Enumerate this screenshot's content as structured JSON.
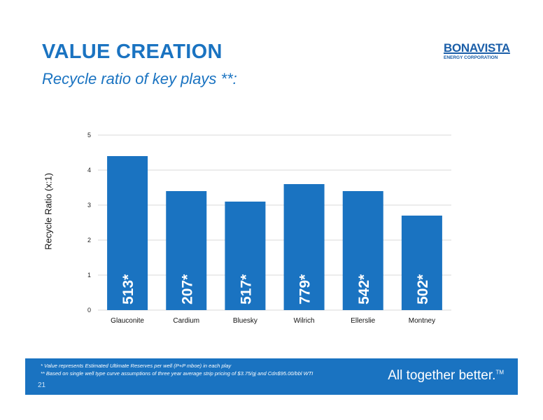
{
  "header": {
    "title": "VALUE CREATION",
    "subtitle": "Recycle ratio of key plays **:"
  },
  "logo": {
    "name": "BONAVISTA",
    "tagline": "ENERGY CORPORATION"
  },
  "chart_data": {
    "type": "bar",
    "title": "",
    "xlabel": "",
    "ylabel": "Recycle Ratio (x:1)",
    "categories": [
      "Glauconite",
      "Cardium",
      "Bluesky",
      "Wilrich",
      "Ellerslie",
      "Montney"
    ],
    "values": [
      4.4,
      3.4,
      3.1,
      3.6,
      3.4,
      2.7
    ],
    "bar_labels": [
      "513*",
      "207*",
      "517*",
      "779*",
      "542*",
      "502*"
    ],
    "ylim": [
      0,
      5
    ],
    "yticks": [
      "0",
      "1",
      "2",
      "3",
      "4",
      "5"
    ],
    "grid": true,
    "bar_color": "#1a73c1"
  },
  "footer": {
    "note1": "*    Value represents Estimated Ultimate Reserves per well (P+P mboe) in each play",
    "note2": "**    Based on single well type curve assumptions of three year average strip pricing of $3.75/gj and Cdn$95.00/bbl WTI",
    "page_number": "21",
    "tagline": "All together better.",
    "tagline_mark": "TM"
  }
}
